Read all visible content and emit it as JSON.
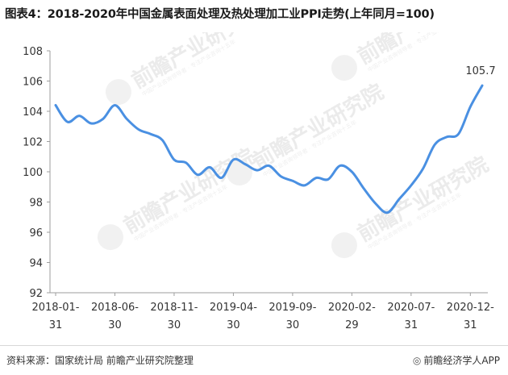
{
  "title": "图表4：2018-2020年中国金属表面处理及热处理加工业PPI走势(上年同月=100)",
  "source_text": "资料来源：国家统计局 前瞻产业研究院整理",
  "brand_text": "前瞻经济学人APP",
  "watermark": {
    "main": "前瞻产业研究院",
    "sub": "中国产业咨询领导者 · 专注产业咨询十五年"
  },
  "colors": {
    "line": "#4a90e2",
    "axis": "#9e9e9e",
    "text": "#333333"
  },
  "chart_data": {
    "type": "line",
    "title": "",
    "xlabel": "",
    "ylabel": "",
    "ylim": [
      92,
      108
    ],
    "yticks": [
      92,
      94,
      96,
      98,
      100,
      102,
      104,
      106,
      108
    ],
    "grid": false,
    "x_tick_labels": [
      [
        "2018-01-",
        "31"
      ],
      [
        "2018-06-",
        "30"
      ],
      [
        "2018-11-",
        "30"
      ],
      [
        "2019-04-",
        "30"
      ],
      [
        "2019-09-",
        "30"
      ],
      [
        "2020-02-",
        "29"
      ],
      [
        "2020-07-",
        "31"
      ],
      [
        "2020-12-",
        "31"
      ]
    ],
    "x": [
      "2018-01",
      "2018-02",
      "2018-03",
      "2018-04",
      "2018-05",
      "2018-06",
      "2018-07",
      "2018-08",
      "2018-09",
      "2018-10",
      "2018-11",
      "2018-12",
      "2019-01",
      "2019-02",
      "2019-03",
      "2019-04",
      "2019-05",
      "2019-06",
      "2019-07",
      "2019-08",
      "2019-09",
      "2019-10",
      "2019-11",
      "2019-12",
      "2020-01",
      "2020-02",
      "2020-03",
      "2020-04",
      "2020-05",
      "2020-06",
      "2020-07",
      "2020-08",
      "2020-09",
      "2020-10",
      "2020-11",
      "2020-12",
      "2021-01"
    ],
    "series": [
      {
        "values": [
          104.4,
          103.3,
          103.7,
          103.2,
          103.5,
          104.4,
          103.5,
          102.8,
          102.5,
          102.1,
          100.8,
          100.6,
          99.8,
          100.3,
          99.6,
          100.8,
          100.5,
          100.1,
          100.4,
          99.7,
          99.4,
          99.1,
          99.6,
          99.5,
          100.4,
          100.0,
          98.9,
          97.9,
          97.3,
          98.2,
          99.1,
          100.2,
          101.8,
          102.3,
          102.5,
          104.3,
          105.7
        ]
      }
    ],
    "annotations": [
      {
        "point_index": 36,
        "text": "105.7"
      }
    ]
  }
}
